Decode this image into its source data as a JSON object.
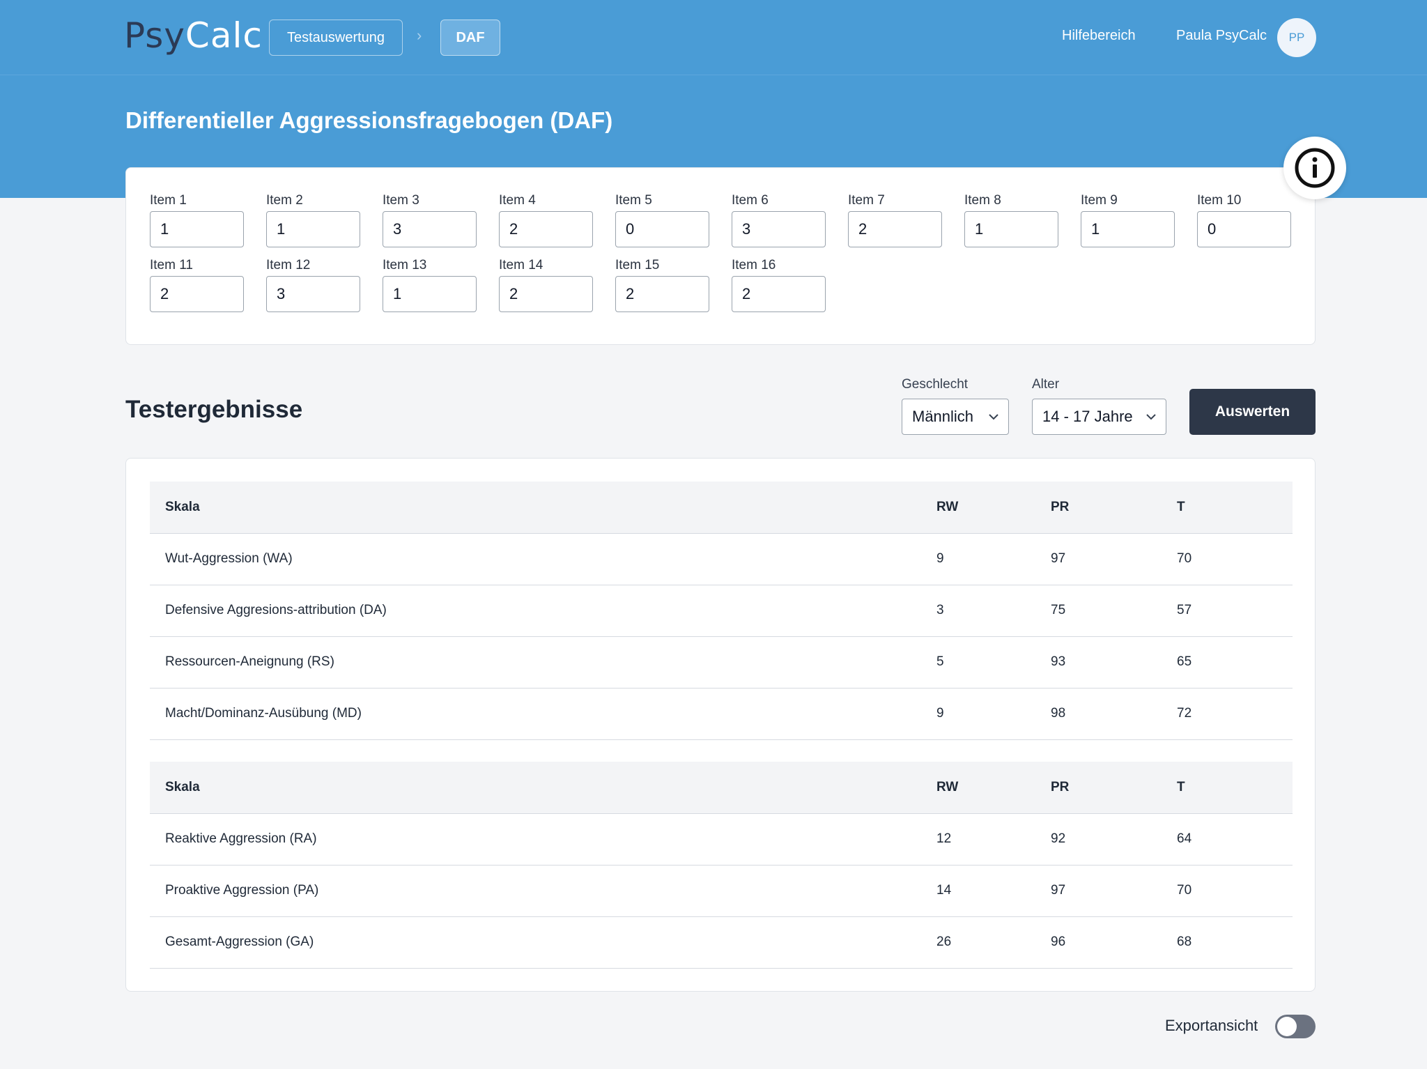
{
  "app": {
    "logo_part1": "Psy",
    "logo_part2": "Calc",
    "breadcrumb": [
      "Testauswertung",
      "DAF"
    ],
    "help_label": "Hilfebereich",
    "user_name": "Paula PsyCalc",
    "avatar_initials": "PP"
  },
  "page": {
    "title": "Differentieller Aggressionsfragebogen (DAF)"
  },
  "items": [
    {
      "label": "Item 1",
      "value": "1"
    },
    {
      "label": "Item 2",
      "value": "1"
    },
    {
      "label": "Item 3",
      "value": "3"
    },
    {
      "label": "Item 4",
      "value": "2"
    },
    {
      "label": "Item 5",
      "value": "0"
    },
    {
      "label": "Item 6",
      "value": "3"
    },
    {
      "label": "Item 7",
      "value": "2"
    },
    {
      "label": "Item 8",
      "value": "1"
    },
    {
      "label": "Item 9",
      "value": "1"
    },
    {
      "label": "Item 10",
      "value": "0"
    },
    {
      "label": "Item 11",
      "value": "2"
    },
    {
      "label": "Item 12",
      "value": "3"
    },
    {
      "label": "Item 13",
      "value": "1"
    },
    {
      "label": "Item 14",
      "value": "2"
    },
    {
      "label": "Item 15",
      "value": "2"
    },
    {
      "label": "Item 16",
      "value": "2"
    }
  ],
  "results": {
    "title": "Testergebnisse",
    "gender_label": "Geschlecht",
    "gender_value": "Männlich",
    "age_label": "Alter",
    "age_value": "14 - 17 Jahre",
    "evaluate_label": "Auswerten",
    "headers": [
      "Skala",
      "RW",
      "PR",
      "T"
    ],
    "table1": [
      [
        "Wut-Aggression (WA)",
        "9",
        "97",
        "70"
      ],
      [
        "Defensive Aggresions-attribution (DA)",
        "3",
        "75",
        "57"
      ],
      [
        "Ressourcen-Aneignung (RS)",
        "5",
        "93",
        "65"
      ],
      [
        "Macht/Dominanz-Ausübung (MD)",
        "9",
        "98",
        "72"
      ]
    ],
    "table2": [
      [
        "Reaktive Aggression (RA)",
        "12",
        "92",
        "64"
      ],
      [
        "Proaktive Aggression (PA)",
        "14",
        "97",
        "70"
      ],
      [
        "Gesamt-Aggression (GA)",
        "26",
        "96",
        "68"
      ]
    ]
  },
  "export": {
    "label": "Exportansicht",
    "enabled": false
  },
  "icons": {
    "info": "info-circle-icon",
    "chevron": "chevron-down-icon",
    "breadcrumb_separator": "chevron-right-icon"
  },
  "colors": {
    "header_blue": "#4a9cd6",
    "button_dark": "#2d3748",
    "toggle_off": "#6b7280"
  }
}
